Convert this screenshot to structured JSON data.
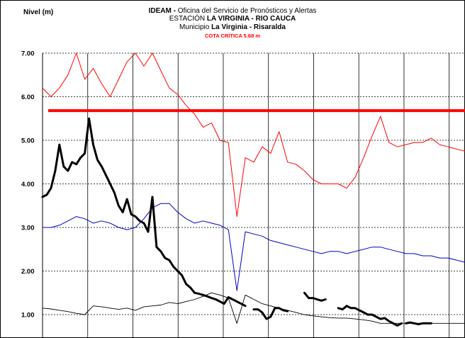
{
  "header": {
    "y_axis_label": "Nivel (m)",
    "line1_bold": "IDEAM -",
    "line1_rest": " Oficina del Servicio de Pronósticos y Alertas",
    "line2_pre": "ESTACIÓN ",
    "line2_bold": "LA VIRGINIA - RIO CAUCA",
    "line3_pre": "Municipio ",
    "line3_bold": "La Virginia - Risaralda",
    "line4": "COTA CRÍTICA 5.68 m"
  },
  "colors": {
    "critical": "#ff0000",
    "upper": "#ff0000",
    "mean": "#0000cc",
    "lower": "#000000",
    "observed": "#000000"
  },
  "chart_data": {
    "type": "line",
    "ylabel": "Nivel (m)",
    "ylim": [
      0.8,
      7.0
    ],
    "x_range": [
      0,
      100
    ],
    "grid": true,
    "yticks": [
      "7.00",
      "6.00",
      "5.00",
      "4.00",
      "3.00",
      "2.00",
      "1.00"
    ],
    "critical_level": 5.68,
    "series": [
      {
        "key": "upper",
        "x": [
          0,
          2,
          4,
          6,
          8,
          10,
          12,
          14,
          16,
          18,
          20,
          22,
          24,
          26,
          28,
          30,
          32,
          34,
          36,
          38,
          40,
          42,
          44,
          46,
          48,
          50,
          52,
          54,
          56,
          58,
          60,
          62,
          64,
          66,
          68,
          70,
          72,
          74,
          76,
          78,
          80,
          82,
          84,
          86,
          88,
          90,
          92,
          94,
          96,
          98,
          100
        ],
        "y": [
          6.2,
          6.0,
          6.2,
          6.5,
          7.0,
          6.4,
          6.65,
          6.3,
          6.0,
          6.4,
          6.8,
          7.0,
          6.7,
          7.0,
          6.6,
          6.2,
          6.05,
          5.8,
          5.6,
          5.3,
          5.4,
          5.0,
          4.95,
          3.25,
          4.6,
          4.5,
          4.85,
          4.7,
          5.2,
          4.5,
          4.45,
          4.3,
          4.1,
          4.0,
          4.0,
          4.0,
          3.9,
          4.15,
          4.6,
          5.1,
          5.55,
          4.95,
          4.85,
          4.9,
          4.95,
          4.95,
          5.05,
          4.9,
          4.85,
          4.8,
          4.75
        ]
      },
      {
        "key": "mean",
        "x": [
          0,
          2,
          4,
          6,
          8,
          10,
          12,
          14,
          16,
          18,
          20,
          22,
          24,
          26,
          28,
          30,
          32,
          34,
          36,
          38,
          40,
          42,
          44,
          46,
          48,
          50,
          52,
          54,
          56,
          58,
          60,
          62,
          64,
          66,
          68,
          70,
          72,
          74,
          76,
          78,
          80,
          82,
          84,
          86,
          88,
          90,
          92,
          94,
          96,
          98,
          100
        ],
        "y": [
          3.0,
          3.0,
          3.05,
          3.15,
          3.25,
          3.2,
          3.1,
          3.15,
          3.1,
          3.0,
          2.95,
          3.0,
          3.2,
          3.45,
          3.55,
          3.55,
          3.35,
          3.2,
          3.1,
          3.15,
          3.1,
          3.05,
          2.95,
          1.55,
          2.9,
          2.85,
          2.8,
          2.7,
          2.65,
          2.6,
          2.55,
          2.5,
          2.45,
          2.4,
          2.45,
          2.45,
          2.4,
          2.45,
          2.5,
          2.55,
          2.55,
          2.5,
          2.45,
          2.4,
          2.4,
          2.35,
          2.35,
          2.3,
          2.3,
          2.25,
          2.2
        ]
      },
      {
        "key": "lower",
        "x": [
          0,
          2,
          4,
          6,
          8,
          10,
          12,
          14,
          16,
          18,
          20,
          22,
          24,
          26,
          28,
          30,
          32,
          34,
          36,
          38,
          40,
          42,
          44,
          46,
          48,
          50,
          52,
          54,
          56,
          58,
          60,
          62,
          64,
          66,
          68,
          70,
          72,
          74,
          76,
          78,
          80,
          82,
          84,
          86,
          88,
          90,
          92,
          94,
          96,
          98,
          100
        ],
        "y": [
          1.15,
          1.13,
          1.1,
          1.07,
          1.03,
          1.0,
          1.2,
          1.18,
          1.15,
          1.12,
          1.15,
          1.1,
          1.18,
          1.2,
          1.22,
          1.28,
          1.25,
          1.3,
          1.35,
          1.42,
          1.5,
          1.45,
          1.38,
          0.8,
          1.45,
          1.35,
          1.25,
          1.2,
          1.15,
          1.1,
          1.05,
          1.0,
          0.97,
          0.95,
          0.93,
          0.92,
          0.92,
          0.9,
          0.88,
          0.85,
          0.8,
          0.8,
          0.8,
          0.8,
          0.8,
          0.8,
          0.8,
          0.8,
          0.8,
          0.8,
          0.8
        ]
      },
      {
        "key": "observed",
        "segments": [
          {
            "x": [
              0,
              1,
              2,
              3,
              4,
              5,
              6,
              7,
              8,
              9,
              10,
              11,
              12,
              13,
              14,
              15,
              16,
              17,
              18,
              19,
              20,
              21,
              22,
              23,
              24,
              25,
              26,
              27,
              28,
              29,
              30,
              31,
              32,
              33,
              34,
              35,
              36,
              37,
              38,
              39,
              40,
              41,
              42,
              43,
              44,
              45,
              46,
              47,
              48
            ],
            "y": [
              3.7,
              3.75,
              3.9,
              4.3,
              4.9,
              4.4,
              4.3,
              4.5,
              4.45,
              4.6,
              4.7,
              5.5,
              4.9,
              4.55,
              4.4,
              4.2,
              4.0,
              3.8,
              3.5,
              3.35,
              3.65,
              3.3,
              3.25,
              3.15,
              3.1,
              2.9,
              3.7,
              2.55,
              2.45,
              2.3,
              2.25,
              2.1,
              2.0,
              1.9,
              1.7,
              1.62,
              1.5,
              1.48,
              1.45,
              1.42,
              1.38,
              1.35,
              1.3,
              1.25,
              1.4,
              1.35,
              1.3,
              1.25,
              1.2
            ]
          },
          {
            "x": [
              50,
              51,
              52,
              53,
              54,
              55,
              56,
              57,
              58
            ],
            "y": [
              1.12,
              1.12,
              1.05,
              0.9,
              0.95,
              1.15,
              1.15,
              1.1,
              1.08
            ]
          },
          {
            "x": [
              62,
              63,
              64,
              65,
              66,
              67
            ],
            "y": [
              1.5,
              1.38,
              1.38,
              1.35,
              1.32,
              1.35
            ]
          },
          {
            "x": [
              70,
              71,
              72,
              73,
              74,
              75,
              76,
              77,
              78,
              79,
              80,
              81,
              82,
              83,
              84,
              85
            ],
            "y": [
              1.15,
              1.12,
              1.2,
              1.15,
              1.15,
              1.1,
              1.05,
              1.0,
              1.0,
              0.95,
              0.9,
              0.92,
              0.85,
              0.8,
              0.75,
              0.8
            ]
          },
          {
            "x": [
              86,
              87,
              88,
              89,
              90,
              91,
              92
            ],
            "y": [
              0.8,
              0.82,
              0.8,
              0.78,
              0.8,
              0.8,
              0.8
            ]
          }
        ]
      }
    ]
  }
}
